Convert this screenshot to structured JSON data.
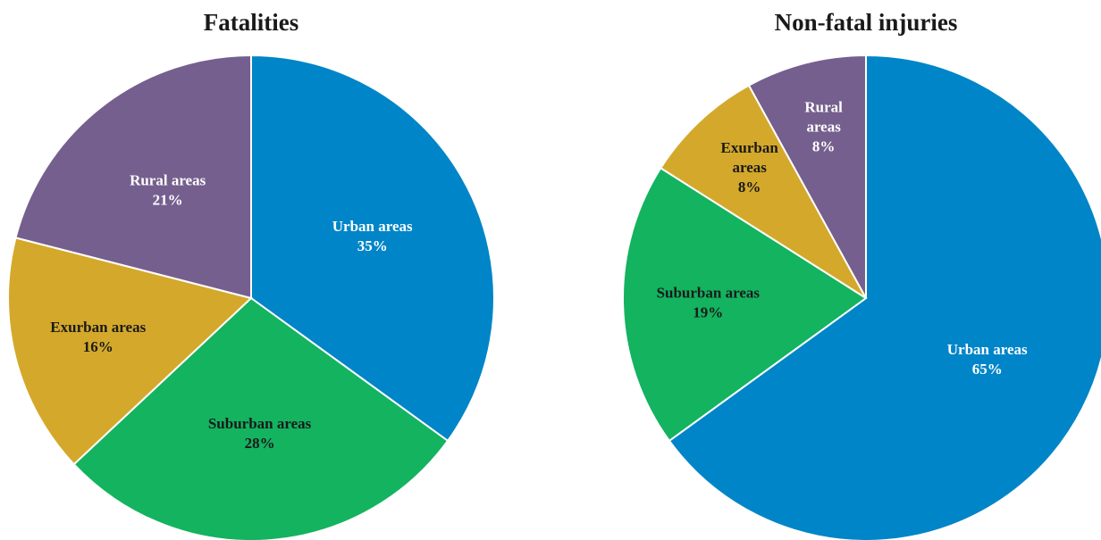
{
  "chart_data": [
    {
      "type": "pie",
      "title": "Fatalities",
      "categories": [
        "Urban areas",
        "Suburban areas",
        "Exurban areas",
        "Rural areas"
      ],
      "values": [
        35,
        28,
        16,
        21
      ],
      "value_labels": [
        "35%",
        "28%",
        "16%",
        "21%"
      ],
      "colors": [
        "#0085c8",
        "#13b360",
        "#d4a82a",
        "#755f8e"
      ]
    },
    {
      "type": "pie",
      "title": "Non-fatal injuries",
      "categories": [
        "Urban areas",
        "Suburban areas",
        "Exurban areas",
        "Rural areas"
      ],
      "values": [
        65,
        19,
        8,
        8
      ],
      "value_labels": [
        "65%",
        "19%",
        "8%",
        "8%"
      ],
      "colors": [
        "#0085c8",
        "#13b360",
        "#d4a82a",
        "#755f8e"
      ]
    }
  ]
}
